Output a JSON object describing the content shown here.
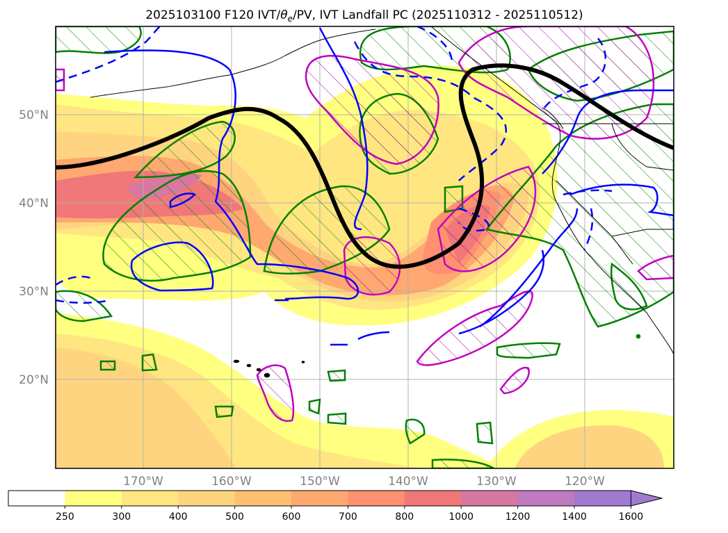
{
  "title": {
    "prefix": "2025103100 F120 IVT/",
    "theta": "θ",
    "theta_sub": "e",
    "suffix": "/PV, IVT Landfall PC (2025110312 - 2025110512)"
  },
  "map": {
    "lat_labels": [
      "50°N",
      "40°N",
      "30°N",
      "20°N"
    ],
    "lon_labels": [
      "170°W",
      "160°W",
      "150°W",
      "140°W",
      "130°W",
      "120°W"
    ]
  },
  "colorbar": {
    "ticks": [
      "250",
      "300",
      "400",
      "500",
      "600",
      "700",
      "800",
      "1000",
      "1200",
      "1400",
      "1600"
    ],
    "colors": [
      "#ffffff",
      "#ffff80",
      "#ffe680",
      "#ffd480",
      "#ffc070",
      "#ffa870",
      "#ff9070",
      "#f07878",
      "#d878a0",
      "#c07ac0",
      "#a07ad0"
    ]
  },
  "legend_colors": {
    "pv_positive": "#0000ff",
    "theta_e": "#008000",
    "ivt_pc_positive": "#c000c0",
    "jet": "#000000"
  }
}
